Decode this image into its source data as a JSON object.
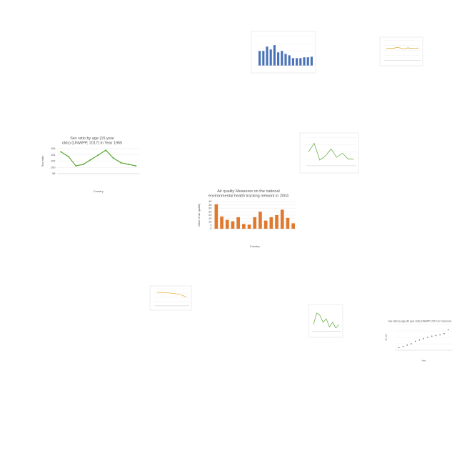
{
  "chart_data": [
    {
      "type": "bar",
      "color": "#4a72b8",
      "ylim": [
        0,
        10
      ],
      "values": [
        5,
        5,
        6.5,
        5.5,
        7,
        4.5,
        5,
        4,
        3.5,
        2.5,
        2.5,
        2.5,
        2.8,
        2.8,
        3
      ],
      "grid": true
    },
    {
      "type": "line",
      "color": "#d4a017",
      "ylim": [
        0,
        10
      ],
      "values": [
        6,
        6.2,
        6.1,
        6.6,
        6.3,
        5.8,
        6.4,
        6.1,
        6.2,
        6.3
      ],
      "grid": true
    },
    {
      "type": "line",
      "color": "#5aa832",
      "title": "Sex ratio by age (15 year olds) (UNWPP, 2017) in Year 1965",
      "ylabel": "Sex ratio",
      "xlabel": "Country",
      "categories": [
        null,
        null,
        null,
        null,
        null,
        null,
        null,
        null,
        null,
        null,
        null
      ],
      "values": [
        105,
        103.5,
        100.5,
        101,
        102.5,
        104,
        105.5,
        103,
        101.5,
        101,
        100.5
      ],
      "ylim": [
        98,
        106
      ],
      "yticks": [
        98,
        100,
        102,
        104,
        106
      ],
      "grid": true
    },
    {
      "type": "line",
      "color": "#5aa832",
      "ylim": [
        0,
        10
      ],
      "values": [
        5,
        8,
        2,
        3.5,
        6,
        3,
        4.5,
        2.5,
        2.3
      ],
      "grid": true
    },
    {
      "type": "bar",
      "color": "#e0782e",
      "title": "Air quality Measures on the national environmental health tracking network in 2004",
      "ylabel": "Value of air quality",
      "xlabel": "Country",
      "categories": [
        null,
        null,
        null,
        null,
        null,
        null,
        null,
        null,
        null,
        null,
        null,
        null,
        null,
        null,
        null
      ],
      "values": [
        36,
        18,
        13,
        11,
        17,
        7,
        6,
        17,
        25,
        12,
        17,
        20,
        28,
        16,
        8
      ],
      "ylim": [
        0,
        40
      ],
      "yticks": [
        0,
        5,
        10,
        15,
        20,
        25,
        30,
        35,
        40
      ],
      "grid": true
    },
    {
      "type": "line",
      "color": "#f0b030",
      "ylim": [
        0,
        10
      ],
      "values": [
        8,
        7.8,
        7.6,
        7.2,
        6.6,
        5.2
      ],
      "grid": true
    },
    {
      "type": "line",
      "color": "#5aa832",
      "ylim": [
        0,
        10
      ],
      "values": [
        3,
        8,
        7,
        4,
        5.5,
        2,
        4,
        1.5,
        3
      ],
      "grid": false
    },
    {
      "type": "scatter",
      "color": "#666666",
      "title": "Sex ratio by age (40 year olds) (UNWPP, 2017) in Cameroon",
      "ylabel": "Sex ratio",
      "xlabel": "Years",
      "x": [
        1955,
        1960,
        1965,
        1970,
        1975,
        1980,
        1985,
        1990,
        1995,
        2000,
        2005,
        2010,
        2015
      ],
      "values": [
        92,
        93,
        94,
        95,
        97,
        98,
        99,
        100,
        101,
        101.5,
        102,
        103,
        106
      ],
      "xlim": [
        1950,
        2020
      ],
      "ylim": [
        90,
        110
      ],
      "grid": true
    }
  ]
}
